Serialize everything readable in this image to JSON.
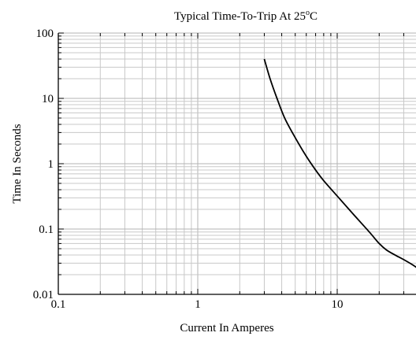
{
  "chart_data": {
    "type": "line",
    "title": "Typical Time-To-Trip At 25",
    "title_degree": "o",
    "title_unit": "C",
    "xlabel": "Current In Amperes",
    "ylabel": "Time In Seconds",
    "x_scale": "log",
    "y_scale": "log",
    "xlim": [
      0.1,
      40
    ],
    "ylim": [
      0.01,
      100
    ],
    "x_ticks": [
      {
        "value": 0.1,
        "label": "0.1"
      },
      {
        "value": 1,
        "label": "1"
      },
      {
        "value": 10,
        "label": "10"
      }
    ],
    "y_ticks": [
      {
        "value": 0.01,
        "label": "0.01"
      },
      {
        "value": 0.1,
        "label": "0.1"
      },
      {
        "value": 1,
        "label": "1"
      },
      {
        "value": 10,
        "label": "10"
      },
      {
        "value": 100,
        "label": "100"
      }
    ],
    "grid": true,
    "series": [
      {
        "color": "#000000",
        "points": [
          [
            3.0,
            40
          ],
          [
            3.3,
            20
          ],
          [
            3.7,
            10
          ],
          [
            4.2,
            5
          ],
          [
            5.0,
            2.5
          ],
          [
            6.0,
            1.3
          ],
          [
            7.0,
            0.8
          ],
          [
            8.0,
            0.55
          ],
          [
            10.0,
            0.32
          ],
          [
            13.0,
            0.17
          ],
          [
            17.0,
            0.09
          ],
          [
            20.0,
            0.06
          ],
          [
            22.5,
            0.048
          ],
          [
            26.0,
            0.04
          ],
          [
            30.0,
            0.034
          ],
          [
            35.0,
            0.028
          ],
          [
            40.0,
            0.023
          ]
        ]
      }
    ]
  }
}
